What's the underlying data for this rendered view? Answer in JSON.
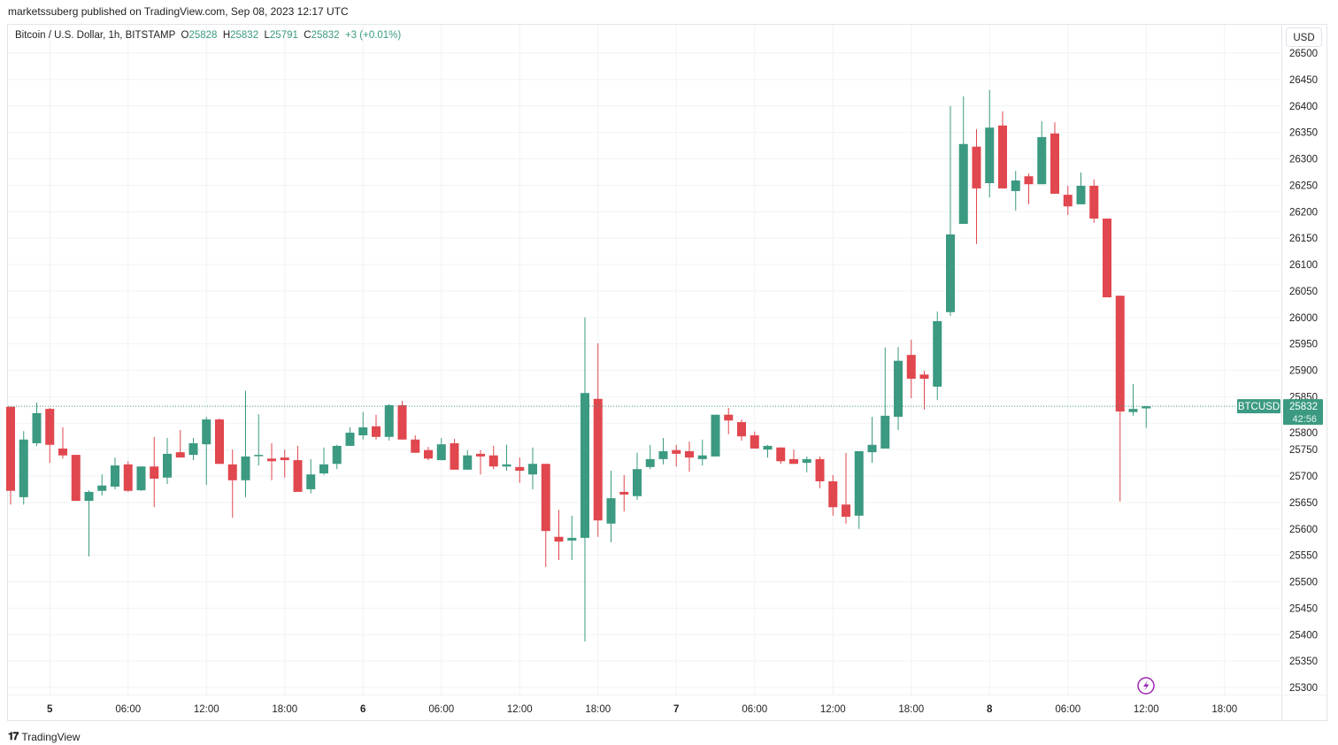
{
  "header": {
    "published": "marketssuberg published on TradingView.com, Sep 08, 2023 12:17 UTC",
    "symbol": "Bitcoin / U.S. Dollar, 1h, BITSTAMP",
    "o_label": "O",
    "o_value": "25828",
    "h_label": "H",
    "h_value": "25832",
    "l_label": "L",
    "l_value": "25791",
    "c_label": "C",
    "c_value": "25832",
    "change": "+3 (+0.01%)"
  },
  "currency_button": "USD",
  "last_price": {
    "symbol": "BTCUSD",
    "price": "25832",
    "countdown": "42:56",
    "value": 25832
  },
  "footer": {
    "brand": "TradingView"
  },
  "colors": {
    "up": "#3b9a81",
    "down": "#e1474e",
    "grid": "#f0f2f5",
    "price_line": "#3b9a81",
    "alert_icon": "#9c27b0"
  },
  "chart_data": {
    "type": "candlestick",
    "title": "Bitcoin / U.S. Dollar, 1h, BITSTAMP",
    "interval": "1h",
    "first_candle": "Sep 4 21:00",
    "ylim": [
      25270,
      26520
    ],
    "y_ticks": [
      26500,
      26450,
      26400,
      26350,
      26300,
      26250,
      26200,
      26150,
      26100,
      26050,
      26000,
      25950,
      25900,
      25850,
      25800,
      25750,
      25700,
      25650,
      25600,
      25550,
      25500,
      25450,
      25400,
      25350,
      25300
    ],
    "x_ticks": [
      {
        "label": "5",
        "hour": 3
      },
      {
        "label": "06:00",
        "hour": 9
      },
      {
        "label": "12:00",
        "hour": 15
      },
      {
        "label": "18:00",
        "hour": 21
      },
      {
        "label": "6",
        "hour": 27
      },
      {
        "label": "06:00",
        "hour": 33
      },
      {
        "label": "12:00",
        "hour": 39
      },
      {
        "label": "18:00",
        "hour": 45
      },
      {
        "label": "7",
        "hour": 51
      },
      {
        "label": "06:00",
        "hour": 57
      },
      {
        "label": "12:00",
        "hour": 63
      },
      {
        "label": "18:00",
        "hour": 69
      },
      {
        "label": "8",
        "hour": 75
      },
      {
        "label": "06:00",
        "hour": 81
      },
      {
        "label": "12:00",
        "hour": 87
      },
      {
        "label": "18:00",
        "hour": 93
      }
    ],
    "grid": true,
    "ohlc": [
      [
        25831,
        25831,
        25646,
        25672
      ],
      [
        25660,
        25785,
        25646,
        25769
      ],
      [
        25762,
        25839,
        25757,
        25819
      ],
      [
        25827,
        25829,
        25725,
        25759
      ],
      [
        25752,
        25792,
        25733,
        25739
      ],
      [
        25740,
        25740,
        25653,
        25653
      ],
      [
        25653,
        25673,
        25548,
        25670
      ],
      [
        25672,
        25703,
        25663,
        25682
      ],
      [
        25680,
        25735,
        25675,
        25720
      ],
      [
        25722,
        25728,
        25670,
        25672
      ],
      [
        25673,
        25718,
        25672,
        25718
      ],
      [
        25718,
        25774,
        25641,
        25695
      ],
      [
        25697,
        25772,
        25685,
        25742
      ],
      [
        25745,
        25787,
        25735,
        25735
      ],
      [
        25740,
        25772,
        25730,
        25762
      ],
      [
        25760,
        25812,
        25683,
        25807
      ],
      [
        25807,
        25809,
        25723,
        25723
      ],
      [
        25722,
        25750,
        25621,
        25692
      ],
      [
        25692,
        25861,
        25660,
        25737
      ],
      [
        25739,
        25817,
        25720,
        25740
      ],
      [
        25733,
        25762,
        25692,
        25728
      ],
      [
        25735,
        25750,
        25697,
        25730
      ],
      [
        25730,
        25757,
        25670,
        25670
      ],
      [
        25675,
        25732,
        25667,
        25703
      ],
      [
        25705,
        25754,
        25702,
        25722
      ],
      [
        25723,
        25759,
        25713,
        25757
      ],
      [
        25757,
        25792,
        25757,
        25782
      ],
      [
        25777,
        25821,
        25769,
        25792
      ],
      [
        25794,
        25816,
        25769,
        25774
      ],
      [
        25774,
        25836,
        25767,
        25834
      ],
      [
        25834,
        25842,
        25769,
        25769
      ],
      [
        25769,
        25777,
        25744,
        25744
      ],
      [
        25749,
        25755,
        25730,
        25733
      ],
      [
        25730,
        25772,
        25730,
        25760
      ],
      [
        25762,
        25770,
        25712,
        25712
      ],
      [
        25712,
        25749,
        25712,
        25739
      ],
      [
        25742,
        25749,
        25703,
        25737
      ],
      [
        25739,
        25757,
        25713,
        25718
      ],
      [
        25718,
        25759,
        25710,
        25722
      ],
      [
        25717,
        25735,
        25687,
        25710
      ],
      [
        25703,
        25754,
        25675,
        25723
      ],
      [
        25723,
        25723,
        25528,
        25596
      ],
      [
        25585,
        25636,
        25541,
        25576
      ],
      [
        25578,
        25625,
        25541,
        25583
      ],
      [
        25583,
        26000,
        25387,
        25857
      ],
      [
        25846,
        25951,
        25585,
        25616
      ],
      [
        25610,
        25710,
        25575,
        25658
      ],
      [
        25670,
        25702,
        25633,
        25665
      ],
      [
        25662,
        25744,
        25655,
        25713
      ],
      [
        25717,
        25759,
        25713,
        25732
      ],
      [
        25732,
        25772,
        25722,
        25747
      ],
      [
        25749,
        25759,
        25718,
        25742
      ],
      [
        25747,
        25765,
        25708,
        25735
      ],
      [
        25732,
        25769,
        25720,
        25739
      ],
      [
        25737,
        25816,
        25737,
        25816
      ],
      [
        25816,
        25829,
        25779,
        25805
      ],
      [
        25802,
        25807,
        25767,
        25775
      ],
      [
        25777,
        25784,
        25752,
        25752
      ],
      [
        25750,
        25759,
        25735,
        25757
      ],
      [
        25754,
        25754,
        25723,
        25728
      ],
      [
        25732,
        25750,
        25723,
        25723
      ],
      [
        25725,
        25737,
        25707,
        25732
      ],
      [
        25732,
        25737,
        25677,
        25690
      ],
      [
        25690,
        25702,
        25625,
        25641
      ],
      [
        25646,
        25744,
        25610,
        25623
      ],
      [
        25625,
        25747,
        25600,
        25747
      ],
      [
        25745,
        25812,
        25725,
        25759
      ],
      [
        25752,
        25943,
        25752,
        25814
      ],
      [
        25812,
        25944,
        25787,
        25918
      ],
      [
        25929,
        25958,
        25847,
        25884
      ],
      [
        25892,
        25899,
        25826,
        25884
      ],
      [
        25869,
        26011,
        25844,
        25993
      ],
      [
        26010,
        26400,
        26003,
        26157
      ],
      [
        26177,
        26418,
        26177,
        26328
      ],
      [
        26323,
        26356,
        26139,
        26244
      ],
      [
        26254,
        26430,
        26227,
        26359
      ],
      [
        26363,
        26390,
        26244,
        26244
      ],
      [
        26239,
        26277,
        26202,
        26259
      ],
      [
        26267,
        26272,
        26214,
        26252
      ],
      [
        26252,
        26371,
        26252,
        26341
      ],
      [
        26348,
        26369,
        26234,
        26234
      ],
      [
        26232,
        26249,
        26194,
        26210
      ],
      [
        26214,
        26274,
        26214,
        26249
      ],
      [
        26249,
        26261,
        26179,
        26187
      ],
      [
        26187,
        26187,
        26038,
        26038
      ],
      [
        26041,
        26041,
        25652,
        25822
      ],
      [
        25821,
        25874,
        25814,
        25827
      ],
      [
        25828,
        25832,
        25791,
        25832
      ]
    ]
  }
}
